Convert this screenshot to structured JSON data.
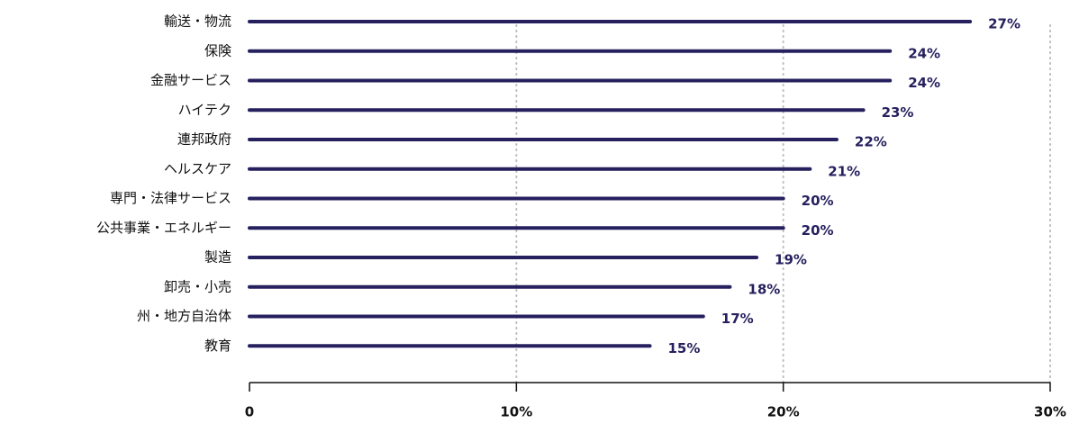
{
  "chart_data": {
    "type": "bar",
    "orientation": "horizontal",
    "categories": [
      "輸送・物流",
      "保険",
      "金融サービス",
      "ハイテク",
      "連邦政府",
      "ヘルスケア",
      "専門・法律サービス",
      "公共事業・エネルギー",
      "製造",
      "卸売・小売",
      "州・地方自治体",
      "教育"
    ],
    "values": [
      27,
      24,
      24,
      23,
      22,
      21,
      20,
      20,
      19,
      18,
      17,
      15
    ],
    "value_labels": [
      "27%",
      "24%",
      "24%",
      "23%",
      "22%",
      "21%",
      "20%",
      "20%",
      "19%",
      "18%",
      "17%",
      "15%"
    ],
    "color": "#26205e",
    "xlim": [
      0,
      30
    ],
    "xticks": [
      0,
      {
        "value": 10,
        "label": "10%"
      },
      {
        "value": 20,
        "label": "20%"
      },
      {
        "value": 30,
        "label": "30%"
      }
    ],
    "grid": true
  }
}
